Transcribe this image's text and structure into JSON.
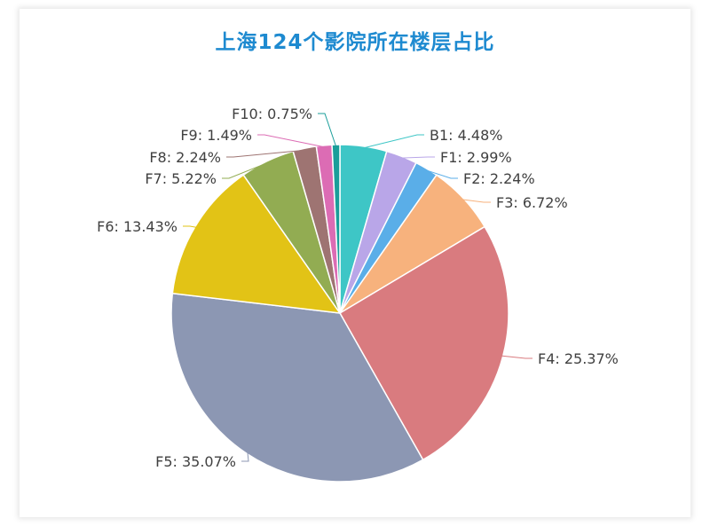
{
  "chart_data": {
    "type": "pie",
    "title": "上海124个影院所在楼层占比",
    "slices": [
      {
        "label": "B1",
        "value": 4.48,
        "text": "B1: 4.48%",
        "color": "#3ec6c6"
      },
      {
        "label": "F1",
        "value": 2.99,
        "text": "F1: 2.99%",
        "color": "#b9a6e8"
      },
      {
        "label": "F2",
        "value": 2.24,
        "text": "F2: 2.24%",
        "color": "#5aaee8"
      },
      {
        "label": "F3",
        "value": 6.72,
        "text": "F3: 6.72%",
        "color": "#f7b27d"
      },
      {
        "label": "F4",
        "value": 25.37,
        "text": "F4: 25.37%",
        "color": "#d97b7f"
      },
      {
        "label": "F5",
        "value": 35.07,
        "text": "F5: 35.07%",
        "color": "#8c97b3"
      },
      {
        "label": "F6",
        "value": 13.43,
        "text": "F6: 13.43%",
        "color": "#e2c316"
      },
      {
        "label": "F7",
        "value": 5.22,
        "text": "F7: 5.22%",
        "color": "#92ac52"
      },
      {
        "label": "F8",
        "value": 2.24,
        "text": "F8: 2.24%",
        "color": "#9e7472"
      },
      {
        "label": "F9",
        "value": 1.49,
        "text": "F9: 1.49%",
        "color": "#dc6cb4"
      },
      {
        "label": "F10",
        "value": 0.75,
        "text": "F10: 0.75%",
        "color": "#1a9e9a"
      }
    ],
    "start_angle": "12 o'clock",
    "direction": "clockwise",
    "legend": "none"
  }
}
